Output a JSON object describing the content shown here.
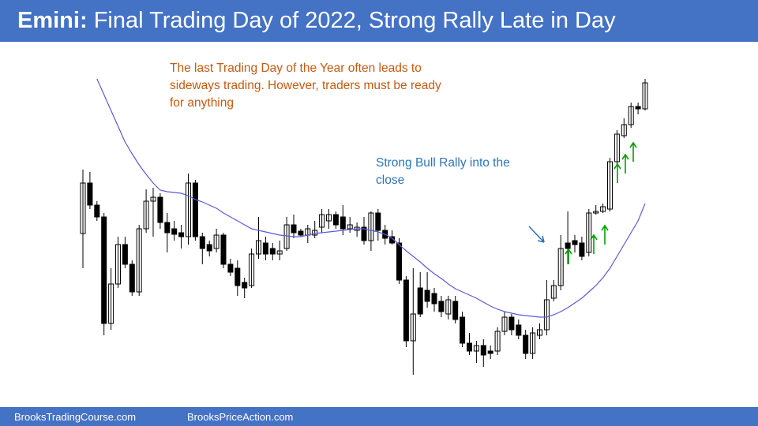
{
  "header": {
    "title_bold": "Emini:",
    "title": "Final Trading Day of 2022, Strong Rally Late in Day"
  },
  "chart_data": {
    "type": "candlestick",
    "annotations": [
      "The last Trading Day of the Year often leads to sideways trading. However, traders must be ready for anything",
      "Strong Bull Rally into the close"
    ],
    "ylim": [
      40,
      460
    ],
    "up_color": "#ffffff",
    "down_color": "#000000",
    "ema_color": "#5b5bd6",
    "open": [
      204,
      268,
      240,
      225,
      90,
      140,
      190,
      165,
      130,
      210,
      245,
      250,
      218,
      210,
      205,
      200,
      268,
      200,
      190,
      185,
      202,
      165,
      160,
      142,
      138,
      178,
      192,
      185,
      178,
      185,
      215,
      207,
      202,
      202,
      212,
      220,
      228,
      225,
      210,
      208,
      212,
      195,
      230,
      208,
      200,
      192,
      145,
      68,
      135,
      132,
      128,
      118,
      102,
      118,
      98,
      65,
      55,
      62,
      55,
      55,
      80,
      98,
      88,
      75,
      52,
      75,
      82,
      122,
      138,
      192,
      195,
      192,
      180,
      230,
      232,
      235,
      295,
      328,
      342,
      365,
      362
    ],
    "high": [
      285,
      282,
      245,
      230,
      160,
      200,
      200,
      170,
      215,
      260,
      262,
      255,
      230,
      220,
      215,
      280,
      272,
      205,
      195,
      210,
      205,
      172,
      170,
      148,
      185,
      225,
      200,
      192,
      195,
      225,
      228,
      210,
      215,
      220,
      235,
      235,
      232,
      240,
      225,
      218,
      225,
      232,
      235,
      215,
      208,
      198,
      150,
      160,
      155,
      155,
      135,
      125,
      125,
      125,
      105,
      78,
      68,
      70,
      62,
      85,
      105,
      102,
      95,
      82,
      85,
      90,
      145,
      145,
      202,
      232,
      202,
      200,
      235,
      240,
      242,
      300,
      335,
      350,
      370,
      370,
      400
    ],
    "low": [
      160,
      235,
      220,
      75,
      82,
      135,
      160,
      125,
      125,
      205,
      200,
      210,
      180,
      195,
      185,
      190,
      195,
      165,
      175,
      180,
      160,
      150,
      125,
      122,
      135,
      172,
      170,
      170,
      170,
      182,
      198,
      200,
      192,
      198,
      205,
      210,
      210,
      202,
      205,
      200,
      190,
      182,
      195,
      190,
      190,
      140,
      60,
      25,
      98,
      110,
      105,
      98,
      95,
      90,
      60,
      50,
      40,
      35,
      45,
      50,
      75,
      75,
      70,
      45,
      45,
      70,
      75,
      118,
      132,
      165,
      180,
      170,
      175,
      228,
      230,
      232,
      292,
      325,
      338,
      355,
      360
    ],
    "close": [
      268,
      240,
      225,
      90,
      140,
      190,
      165,
      130,
      210,
      245,
      250,
      218,
      205,
      203,
      200,
      268,
      200,
      185,
      182,
      202,
      165,
      155,
      138,
      135,
      178,
      195,
      178,
      178,
      182,
      215,
      205,
      202,
      210,
      208,
      228,
      228,
      215,
      210,
      215,
      212,
      195,
      230,
      208,
      198,
      192,
      145,
      68,
      102,
      102,
      118,
      115,
      105,
      120,
      95,
      65,
      55,
      62,
      50,
      52,
      80,
      98,
      82,
      75,
      52,
      78,
      82,
      120,
      138,
      185,
      185,
      190,
      175,
      230,
      232,
      238,
      295,
      330,
      342,
      365,
      362,
      395
    ],
    "ema": [
      null,
      null,
      400,
      380,
      360,
      340,
      320,
      305,
      291,
      279,
      268,
      259,
      257,
      256,
      255,
      252,
      247,
      244,
      240,
      236,
      230,
      225,
      220,
      215,
      210,
      208,
      206,
      204,
      202,
      201,
      200,
      200,
      202,
      204,
      205,
      206,
      207,
      208,
      209,
      210,
      210,
      208,
      206,
      203,
      198,
      190,
      182,
      175,
      168,
      160,
      153,
      147,
      140,
      134,
      130,
      126,
      122,
      117,
      112,
      108,
      105,
      103,
      101,
      100,
      99,
      98,
      98,
      101,
      105,
      110,
      116,
      122,
      130,
      138,
      148,
      160,
      175,
      190,
      205,
      220,
      242
    ]
  },
  "footer": {
    "left": "BrooksTradingCourse.com",
    "right": "BrooksPriceAction.com"
  }
}
